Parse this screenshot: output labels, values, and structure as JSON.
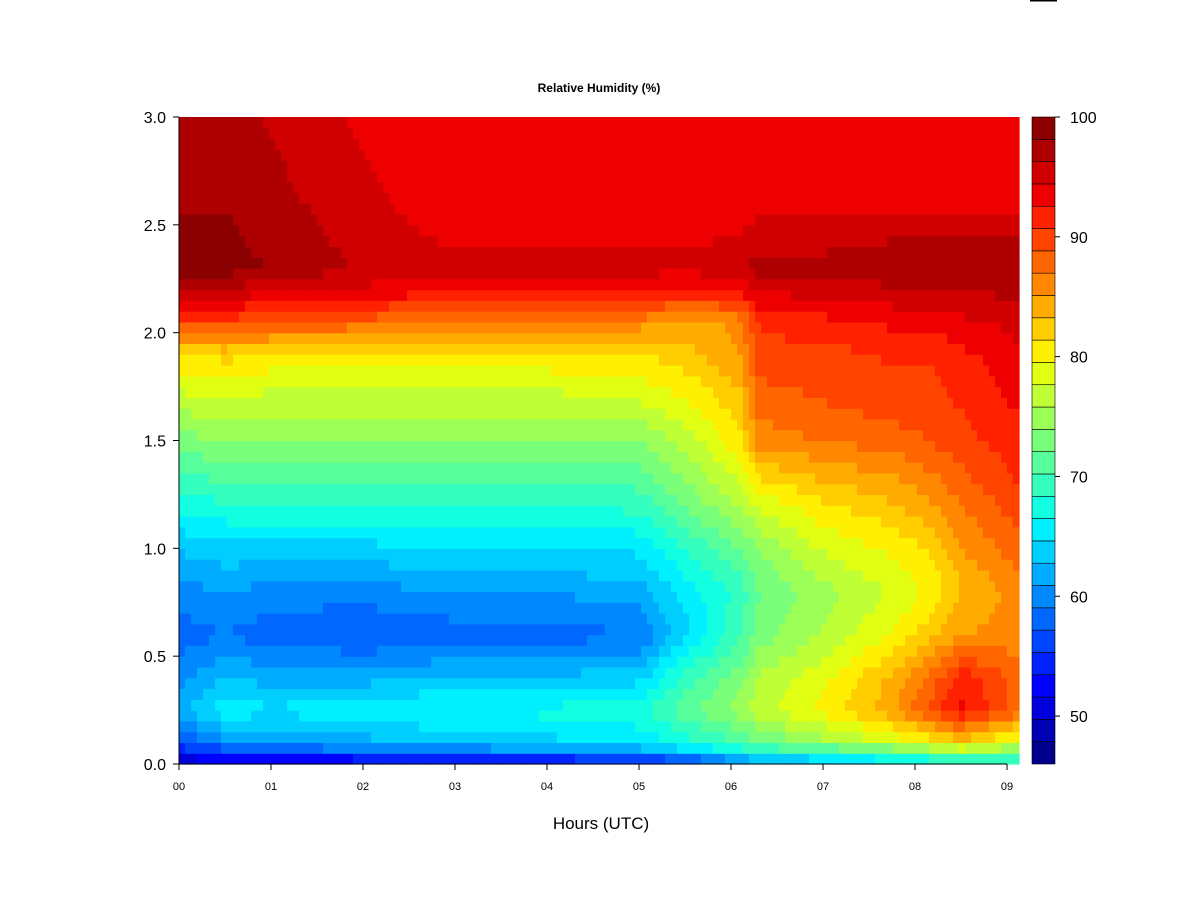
{
  "chart_data": {
    "type": "heatmap",
    "title": "Relative Humidity (%)",
    "xlabel": "Hours (UTC)",
    "ylabel": "",
    "xlim": [
      0,
      9.13
    ],
    "ylim": [
      0,
      3.0
    ],
    "x_ticks": [
      {
        "value": 0,
        "label": "00"
      },
      {
        "value": 1,
        "label": "01"
      },
      {
        "value": 2,
        "label": "02"
      },
      {
        "value": 3,
        "label": "03"
      },
      {
        "value": 4,
        "label": "04"
      },
      {
        "value": 5,
        "label": "05"
      },
      {
        "value": 6,
        "label": "06"
      },
      {
        "value": 7,
        "label": "07"
      },
      {
        "value": 8,
        "label": "08"
      },
      {
        "value": 9,
        "label": "09"
      }
    ],
    "y_ticks": [
      {
        "value": 0.0,
        "label": "0.0"
      },
      {
        "value": 0.5,
        "label": "0.5"
      },
      {
        "value": 1.0,
        "label": "1.0"
      },
      {
        "value": 1.5,
        "label": "1.5"
      },
      {
        "value": 2.0,
        "label": "2.0"
      },
      {
        "value": 2.5,
        "label": "2.5"
      },
      {
        "value": 3.0,
        "label": "3.0"
      }
    ],
    "colorbar": {
      "range": [
        46,
        100
      ],
      "ticks": [
        {
          "value": 50,
          "label": "50"
        },
        {
          "value": 60,
          "label": "60"
        },
        {
          "value": 70,
          "label": "70"
        },
        {
          "value": 80,
          "label": "80"
        },
        {
          "value": 90,
          "label": "90"
        },
        {
          "value": 100,
          "label": "100"
        }
      ],
      "palette": [
        "#00008b",
        "#0000b4",
        "#0000dc",
        "#0000ff",
        "#0022ff",
        "#0045ff",
        "#0067ff",
        "#0089ff",
        "#00acff",
        "#00ceff",
        "#00f0ff",
        "#12ffe1",
        "#35ffbe",
        "#57ff9c",
        "#79ff7a",
        "#9cff57",
        "#beff35",
        "#e1ff12",
        "#ffef00",
        "#ffcd00",
        "#ffab00",
        "#ff8800",
        "#ff6600",
        "#ff4400",
        "#ff2100",
        "#ee0000",
        "#d00000",
        "#ae0000",
        "#8b0000"
      ]
    },
    "x_nodes": [
      0,
      0.5,
      1,
      2,
      3,
      4,
      5,
      5.6,
      6.1,
      6.3,
      7,
      7.8,
      8.2,
      8.5,
      9.13
    ],
    "y_nodes": [
      0,
      0.05,
      0.1,
      0.25,
      0.4,
      0.6,
      0.8,
      1.0,
      1.2,
      1.5,
      1.7,
      1.9,
      2.05,
      2.2,
      2.3,
      2.6,
      3.0
    ],
    "values": [
      [
        49,
        50,
        50,
        50,
        51,
        51,
        52,
        54,
        58,
        60,
        62,
        64,
        65,
        66,
        66
      ],
      [
        53,
        55,
        56,
        57,
        58,
        59,
        60,
        63,
        66,
        67,
        68,
        70,
        72,
        74,
        72
      ],
      [
        57,
        60,
        61,
        62,
        63,
        64,
        65,
        68,
        70,
        72,
        75,
        78,
        80,
        82,
        78
      ],
      [
        62,
        66,
        65,
        66,
        67,
        67,
        68,
        72,
        75,
        77,
        80,
        85,
        90,
        93,
        88
      ],
      [
        60,
        63,
        62,
        62,
        63,
        63,
        64,
        70,
        73,
        76,
        79,
        84,
        88,
        92,
        88
      ],
      [
        58,
        59,
        58,
        57,
        58,
        58,
        59,
        65,
        70,
        73,
        76,
        80,
        83,
        85,
        86
      ],
      [
        60,
        61,
        60,
        60,
        61,
        61,
        62,
        66,
        69,
        72,
        75,
        78,
        80,
        83,
        86
      ],
      [
        63,
        64,
        64,
        64,
        65,
        65,
        65,
        69,
        72,
        74,
        78,
        80,
        82,
        85,
        88
      ],
      [
        67,
        68,
        68,
        68,
        68,
        68,
        69,
        73,
        76,
        78,
        81,
        83,
        85,
        87,
        90
      ],
      [
        73,
        74,
        74,
        74,
        74,
        74,
        74,
        77,
        81,
        86,
        87,
        88,
        89,
        90,
        92
      ],
      [
        77,
        78,
        77,
        77,
        77,
        77,
        78,
        80,
        83,
        88,
        89,
        90,
        90,
        91,
        93
      ],
      [
        81,
        82,
        81,
        81,
        81,
        81,
        81,
        83,
        85,
        90,
        90,
        91,
        91,
        92,
        94
      ],
      [
        90,
        90,
        89,
        88,
        87,
        86,
        86,
        84,
        86,
        91,
        92,
        93,
        93,
        94,
        95
      ],
      [
        96,
        96,
        95,
        94,
        93,
        93,
        93,
        92,
        93,
        95,
        95,
        96,
        96,
        96,
        97
      ],
      [
        99,
        99,
        98,
        96,
        95,
        95,
        95,
        95,
        96,
        97,
        97,
        98,
        98,
        98,
        98
      ],
      [
        98,
        98,
        97,
        95,
        93,
        93,
        93,
        93,
        93,
        94,
        94,
        94,
        94,
        94,
        94
      ],
      [
        97,
        97,
        96,
        94,
        93,
        93,
        93,
        93,
        93,
        93,
        93,
        93,
        93,
        94,
        94
      ]
    ]
  }
}
